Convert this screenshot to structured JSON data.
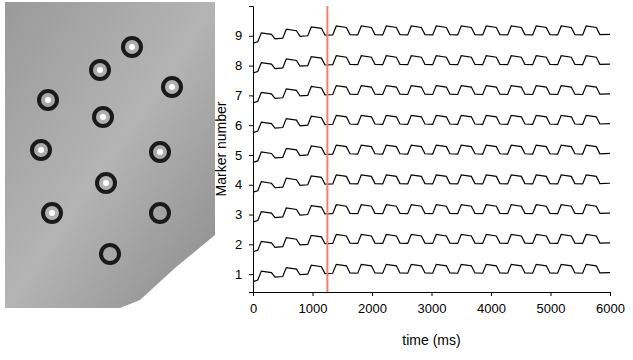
{
  "chart_data": {
    "type": "line",
    "x_label": "time (ms)",
    "y_label": "Marker number",
    "color": "#000000",
    "xlim": [
      0,
      6000
    ],
    "xticks": [
      0,
      1000,
      2000,
      3000,
      4000,
      5000,
      6000
    ],
    "ylim": [
      0.4,
      10
    ],
    "yticks": [
      1,
      2,
      3,
      4,
      5,
      6,
      7,
      8,
      9
    ],
    "vline_x": 1250,
    "x": [
      0,
      80,
      140,
      310,
      370,
      500,
      560,
      730,
      790,
      920,
      980,
      1150,
      1210,
      1340,
      1400,
      1570,
      1630,
      1760,
      1820,
      1990,
      2050,
      2180,
      2240,
      2410,
      2470,
      2600,
      2660,
      2830,
      2890,
      3020,
      3080,
      3250,
      3310,
      3440,
      3500,
      3670,
      3730,
      3860,
      3920,
      4090,
      4150,
      4280,
      4340,
      4510,
      4570,
      4700,
      4760,
      4930,
      4990,
      5120,
      5180,
      5350,
      5410,
      5540,
      5600,
      5770,
      5830,
      6000
    ],
    "series": [
      {
        "values": [
          0.75,
          0.8,
          1.1,
          1.05,
          0.9,
          0.92,
          1.22,
          1.17,
          0.98,
          1,
          1.3,
          1.25,
          1.02,
          1.03,
          1.33,
          1.28,
          1.04,
          1.03,
          1.33,
          1.28,
          1.04,
          1.03,
          1.33,
          1.28,
          1.04,
          1.03,
          1.33,
          1.28,
          1.04,
          1.03,
          1.33,
          1.28,
          1.04,
          1.03,
          1.33,
          1.28,
          1.04,
          1.03,
          1.33,
          1.28,
          1.04,
          1.03,
          1.33,
          1.28,
          1.04,
          1.03,
          1.33,
          1.28,
          1.04,
          1.03,
          1.33,
          1.28,
          1.04,
          1.03,
          1.33,
          1.28,
          1.04,
          1.05
        ]
      },
      {
        "values": [
          1.75,
          1.8,
          2.1,
          2.05,
          1.9,
          1.92,
          2.22,
          2.17,
          1.98,
          2,
          2.3,
          2.25,
          2.02,
          2.03,
          2.33,
          2.28,
          2.04,
          2.03,
          2.33,
          2.28,
          2.04,
          2.03,
          2.33,
          2.28,
          2.04,
          2.03,
          2.33,
          2.28,
          2.04,
          2.03,
          2.33,
          2.28,
          2.04,
          2.03,
          2.33,
          2.28,
          2.04,
          2.03,
          2.33,
          2.28,
          2.04,
          2.03,
          2.33,
          2.28,
          2.04,
          2.03,
          2.33,
          2.28,
          2.04,
          2.03,
          2.33,
          2.28,
          2.04,
          2.03,
          2.33,
          2.28,
          2.04,
          2.05
        ]
      },
      {
        "values": [
          2.75,
          2.8,
          3.1,
          3.05,
          2.9,
          2.92,
          3.22,
          3.17,
          2.98,
          3,
          3.3,
          3.25,
          3.02,
          3.03,
          3.33,
          3.28,
          3.04,
          3.03,
          3.33,
          3.28,
          3.04,
          3.03,
          3.33,
          3.28,
          3.04,
          3.03,
          3.33,
          3.28,
          3.04,
          3.03,
          3.33,
          3.28,
          3.04,
          3.03,
          3.33,
          3.28,
          3.04,
          3.03,
          3.33,
          3.28,
          3.04,
          3.03,
          3.33,
          3.28,
          3.04,
          3.03,
          3.33,
          3.28,
          3.04,
          3.03,
          3.33,
          3.28,
          3.04,
          3.03,
          3.33,
          3.28,
          3.04,
          3.05
        ]
      },
      {
        "values": [
          3.75,
          3.8,
          4.1,
          4.05,
          3.9,
          3.92,
          4.22,
          4.17,
          3.98,
          4,
          4.3,
          4.25,
          4.02,
          4.03,
          4.33,
          4.28,
          4.04,
          4.03,
          4.33,
          4.28,
          4.04,
          4.03,
          4.33,
          4.28,
          4.04,
          4.03,
          4.33,
          4.28,
          4.04,
          4.03,
          4.33,
          4.28,
          4.04,
          4.03,
          4.33,
          4.28,
          4.04,
          4.03,
          4.33,
          4.28,
          4.04,
          4.03,
          4.33,
          4.28,
          4.04,
          4.03,
          4.33,
          4.28,
          4.04,
          4.03,
          4.33,
          4.28,
          4.04,
          4.03,
          4.33,
          4.28,
          4.04,
          4.05
        ]
      },
      {
        "values": [
          4.75,
          4.8,
          5.1,
          5.05,
          4.9,
          4.92,
          5.22,
          5.17,
          4.98,
          5,
          5.3,
          5.25,
          5.02,
          5.03,
          5.33,
          5.28,
          5.04,
          5.03,
          5.33,
          5.28,
          5.04,
          5.03,
          5.33,
          5.28,
          5.04,
          5.03,
          5.33,
          5.28,
          5.04,
          5.03,
          5.33,
          5.28,
          5.04,
          5.03,
          5.33,
          5.28,
          5.04,
          5.03,
          5.33,
          5.28,
          5.04,
          5.03,
          5.33,
          5.28,
          5.04,
          5.03,
          5.33,
          5.28,
          5.04,
          5.03,
          5.33,
          5.28,
          5.04,
          5.03,
          5.33,
          5.28,
          5.04,
          5.05
        ]
      },
      {
        "values": [
          5.75,
          5.8,
          6.1,
          6.05,
          5.9,
          5.92,
          6.22,
          6.17,
          5.98,
          6,
          6.3,
          6.25,
          6.02,
          6.03,
          6.33,
          6.28,
          6.04,
          6.03,
          6.33,
          6.28,
          6.04,
          6.03,
          6.33,
          6.28,
          6.04,
          6.03,
          6.33,
          6.28,
          6.04,
          6.03,
          6.33,
          6.28,
          6.04,
          6.03,
          6.33,
          6.28,
          6.04,
          6.03,
          6.33,
          6.28,
          6.04,
          6.03,
          6.33,
          6.28,
          6.04,
          6.03,
          6.33,
          6.28,
          6.04,
          6.03,
          6.33,
          6.28,
          6.04,
          6.03,
          6.33,
          6.28,
          6.04,
          6.05
        ]
      },
      {
        "values": [
          6.75,
          6.8,
          7.1,
          7.05,
          6.9,
          6.92,
          7.22,
          7.17,
          6.98,
          7,
          7.3,
          7.25,
          7.02,
          7.03,
          7.33,
          7.28,
          7.04,
          7.03,
          7.33,
          7.28,
          7.04,
          7.03,
          7.33,
          7.28,
          7.04,
          7.03,
          7.33,
          7.28,
          7.04,
          7.03,
          7.33,
          7.28,
          7.04,
          7.03,
          7.33,
          7.28,
          7.04,
          7.03,
          7.33,
          7.28,
          7.04,
          7.03,
          7.33,
          7.28,
          7.04,
          7.03,
          7.33,
          7.28,
          7.04,
          7.03,
          7.33,
          7.28,
          7.04,
          7.03,
          7.33,
          7.28,
          7.04,
          7.05
        ]
      },
      {
        "values": [
          7.75,
          7.8,
          8.1,
          8.05,
          7.9,
          7.92,
          8.22,
          8.17,
          7.98,
          8,
          8.3,
          8.25,
          8.02,
          8.03,
          8.33,
          8.28,
          8.04,
          8.03,
          8.33,
          8.28,
          8.04,
          8.03,
          8.33,
          8.28,
          8.04,
          8.03,
          8.33,
          8.28,
          8.04,
          8.03,
          8.33,
          8.28,
          8.04,
          8.03,
          8.33,
          8.28,
          8.04,
          8.03,
          8.33,
          8.28,
          8.04,
          8.03,
          8.33,
          8.28,
          8.04,
          8.03,
          8.33,
          8.28,
          8.04,
          8.03,
          8.33,
          8.28,
          8.04,
          8.03,
          8.33,
          8.28,
          8.04,
          8.05
        ]
      },
      {
        "values": [
          8.75,
          8.8,
          9.1,
          9.05,
          8.9,
          8.92,
          9.22,
          9.17,
          8.98,
          9,
          9.3,
          9.25,
          9.02,
          9.03,
          9.33,
          9.28,
          9.04,
          9.03,
          9.33,
          9.28,
          9.04,
          9.03,
          9.33,
          9.28,
          9.04,
          9.03,
          9.33,
          9.28,
          9.04,
          9.03,
          9.33,
          9.28,
          9.04,
          9.03,
          9.33,
          9.28,
          9.04,
          9.03,
          9.33,
          9.28,
          9.04,
          9.03,
          9.33,
          9.28,
          9.04,
          9.03,
          9.33,
          9.28,
          9.04,
          9.03,
          9.33,
          9.28,
          9.04,
          9.03,
          9.33,
          9.28,
          9.04,
          9.05
        ]
      }
    ]
  }
}
